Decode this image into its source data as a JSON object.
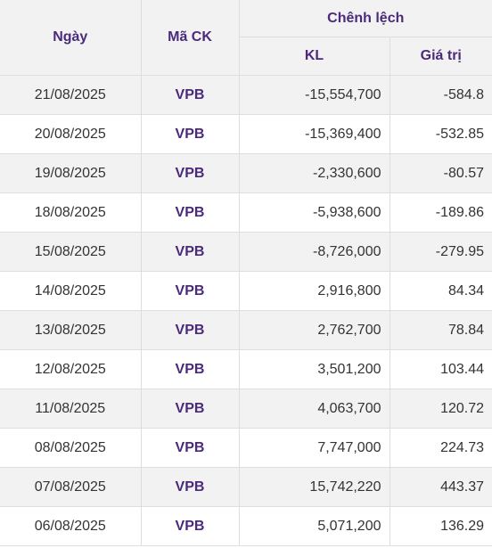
{
  "header": {
    "date_label": "Ngày",
    "code_label": "Mã CK",
    "diff_label": "Chênh lệch",
    "volume_label": "KL",
    "value_label": "Giá trị"
  },
  "rows": [
    {
      "date": "21/08/2025",
      "code": "VPB",
      "volume": "-15,554,700",
      "value": "-584.8"
    },
    {
      "date": "20/08/2025",
      "code": "VPB",
      "volume": "-15,369,400",
      "value": "-532.85"
    },
    {
      "date": "19/08/2025",
      "code": "VPB",
      "volume": "-2,330,600",
      "value": "-80.57"
    },
    {
      "date": "18/08/2025",
      "code": "VPB",
      "volume": "-5,938,600",
      "value": "-189.86"
    },
    {
      "date": "15/08/2025",
      "code": "VPB",
      "volume": "-8,726,000",
      "value": "-279.95"
    },
    {
      "date": "14/08/2025",
      "code": "VPB",
      "volume": "2,916,800",
      "value": "84.34"
    },
    {
      "date": "13/08/2025",
      "code": "VPB",
      "volume": "2,762,700",
      "value": "78.84"
    },
    {
      "date": "12/08/2025",
      "code": "VPB",
      "volume": "3,501,200",
      "value": "103.44"
    },
    {
      "date": "11/08/2025",
      "code": "VPB",
      "volume": "4,063,700",
      "value": "120.72"
    },
    {
      "date": "08/08/2025",
      "code": "VPB",
      "volume": "7,747,000",
      "value": "224.73"
    },
    {
      "date": "07/08/2025",
      "code": "VPB",
      "volume": "15,742,220",
      "value": "443.37"
    },
    {
      "date": "06/08/2025",
      "code": "VPB",
      "volume": "5,071,200",
      "value": "136.29"
    }
  ]
}
